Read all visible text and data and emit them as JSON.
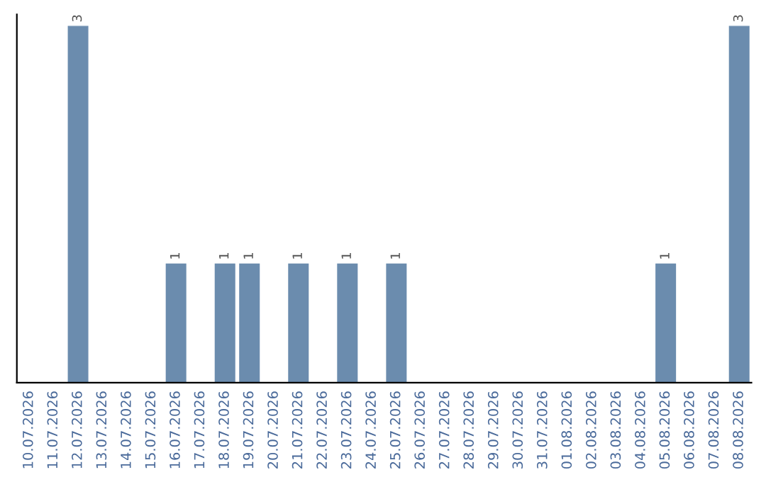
{
  "chart_data": {
    "type": "bar",
    "categories": [
      "10.07.2026",
      "11.07.2026",
      "12.07.2026",
      "13.07.2026",
      "14.07.2026",
      "15.07.2026",
      "16.07.2026",
      "17.07.2026",
      "18.07.2026",
      "19.07.2026",
      "20.07.2026",
      "21.07.2026",
      "22.07.2026",
      "23.07.2026",
      "24.07.2026",
      "25.07.2026",
      "26.07.2026",
      "27.07.2026",
      "28.07.2026",
      "29.07.2026",
      "30.07.2026",
      "31.07.2026",
      "01.08.2026",
      "02.08.2026",
      "03.08.2026",
      "04.08.2026",
      "05.08.2026",
      "06.08.2026",
      "07.08.2026",
      "08.08.2026"
    ],
    "values": [
      0,
      0,
      3,
      0,
      0,
      0,
      1,
      0,
      1,
      1,
      0,
      1,
      0,
      1,
      0,
      1,
      0,
      0,
      0,
      0,
      0,
      0,
      0,
      0,
      0,
      0,
      1,
      0,
      0,
      3
    ],
    "value_labels": [
      null,
      null,
      "3",
      null,
      null,
      null,
      "1",
      null,
      "1",
      "1",
      null,
      "1",
      null,
      "1",
      null,
      "1",
      null,
      null,
      null,
      null,
      null,
      null,
      null,
      null,
      null,
      null,
      "1",
      null,
      null,
      "3"
    ],
    "color": "#6b8cae",
    "ylim": [
      0,
      3.1
    ],
    "tick_labels": "x",
    "grid": false,
    "legend": false
  }
}
